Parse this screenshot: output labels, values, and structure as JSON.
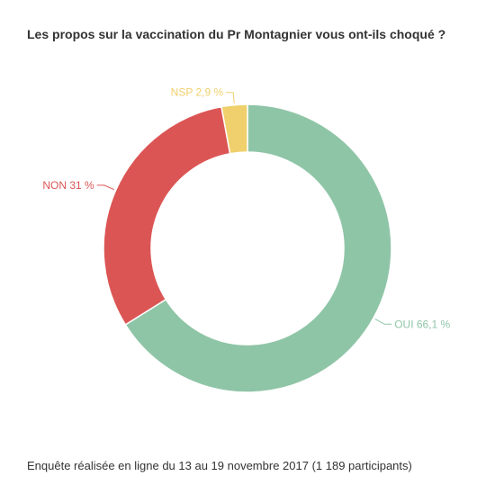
{
  "chart_data": {
    "type": "pie",
    "title": "Les propos sur la vaccination du Pr Montagnier vous ont-ils choqué ?",
    "donut": true,
    "slices": [
      {
        "label": "OUI 66,1 %",
        "value": 66.1,
        "color": "#8fc5a7"
      },
      {
        "label": "NON 31 %",
        "value": 31,
        "color": "#dc5555"
      },
      {
        "label": "NSP 2,9 %",
        "value": 2.9,
        "color": "#f0d06c"
      }
    ]
  },
  "footnote": "Enquête réalisée en ligne du 13 au 19 novembre 2017 (1 189 participants)"
}
